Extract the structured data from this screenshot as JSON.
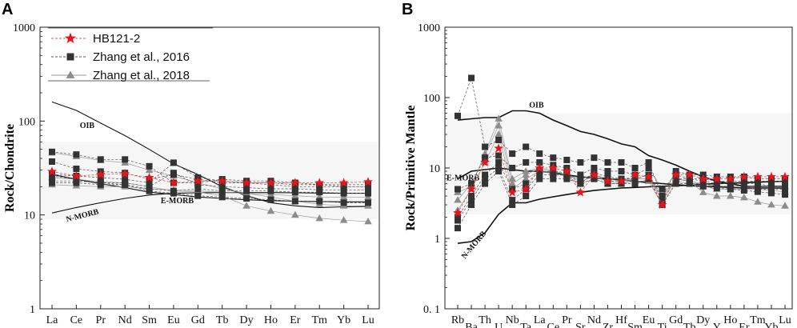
{
  "chart_data": [
    {
      "panel": "A",
      "type": "line",
      "scale": "log",
      "ylabel": "Rock/Chondrite",
      "ylim": [
        1,
        1000
      ],
      "yticks": [
        "1",
        "10",
        "100",
        "1000"
      ],
      "categories": [
        "La",
        "Ce",
        "Pr",
        "Nd",
        "Sm",
        "Eu",
        "Gd",
        "Tb",
        "Dy",
        "Ho",
        "Er",
        "Tm",
        "Yb",
        "Lu"
      ],
      "legend": [
        {
          "label": "HB121-2",
          "marker": "star",
          "color": "#e8141b"
        },
        {
          "label": "Zhang et al., 2016",
          "marker": "square",
          "color": "#333333"
        },
        {
          "label": "Zhang et al., 2018",
          "marker": "triangle",
          "color": "#8c8c8c"
        }
      ],
      "reference": [
        {
          "name": "OIB",
          "values": [
            160,
            130,
            95,
            70,
            50,
            35,
            27,
            20,
            16,
            13.5,
            12.5,
            12,
            12.2,
            12.3
          ]
        },
        {
          "name": "E-MORB",
          "values": [
            27,
            24,
            21.5,
            19.5,
            17.5,
            16.5,
            15.5,
            15,
            14.5,
            14.2,
            14,
            13.9,
            13.8,
            13.8
          ]
        },
        {
          "name": "N-MORB",
          "values": [
            10.5,
            12,
            13.5,
            15,
            16.3,
            17,
            17.2,
            17.3,
            17.3,
            17.3,
            17.2,
            17.1,
            17,
            17
          ]
        }
      ],
      "series": [
        {
          "name": "HB121-2",
          "group": "HB121-2",
          "values": [
            29,
            26,
            27,
            27.5,
            25,
            22,
            23,
            23,
            22,
            22,
            22,
            22,
            22,
            22.5
          ]
        },
        {
          "name": "Zhang 2016 #1",
          "group": "Zhang et al., 2016",
          "values": [
            47,
            44,
            39,
            39,
            33,
            22,
            22,
            24,
            23,
            23,
            22,
            21,
            20,
            20
          ]
        },
        {
          "name": "Zhang 2016 #2",
          "group": "Zhang et al., 2016",
          "values": [
            37,
            31,
            29,
            28,
            24,
            27,
            24,
            22,
            22,
            22,
            21,
            21,
            21,
            21
          ]
        },
        {
          "name": "Zhang 2016 #3",
          "group": "Zhang et al., 2016",
          "values": [
            27,
            26,
            25,
            24,
            22,
            36,
            25,
            23,
            22,
            21,
            20,
            20,
            20,
            20
          ]
        },
        {
          "name": "Zhang 2016 #4",
          "group": "Zhang et al., 2016",
          "values": [
            23,
            23,
            22,
            22,
            20,
            28,
            21,
            20,
            19.5,
            19,
            19,
            18.5,
            18.5,
            18.5
          ]
        },
        {
          "name": "Zhang 2016 #5",
          "group": "Zhang et al., 2016",
          "values": [
            22,
            22,
            21,
            21,
            19,
            18,
            19,
            18,
            18,
            18,
            17.5,
            17.5,
            17,
            17
          ]
        },
        {
          "name": "Zhang 2016 #6",
          "group": "Zhang et al., 2016",
          "values": [
            26,
            24,
            22,
            21,
            18,
            17,
            16,
            15.5,
            15,
            14.5,
            14,
            14,
            13.5,
            13.5
          ]
        },
        {
          "name": "Zhang 2018 #1",
          "group": "Zhang et al., 2018",
          "values": [
            46,
            42,
            38,
            36,
            30,
            26,
            22,
            19,
            17,
            15.5,
            14,
            13,
            12.5,
            12.5
          ]
        },
        {
          "name": "Zhang 2018 #2",
          "group": "Zhang et al., 2018",
          "values": [
            25,
            24,
            22.5,
            22,
            20,
            18,
            17.5,
            16,
            12.5,
            11,
            10,
            9.2,
            8.8,
            8.5
          ]
        },
        {
          "name": "Zhang 2018 #3",
          "group": "Zhang et al., 2018",
          "values": [
            21,
            20.5,
            20,
            20,
            19,
            18.5,
            18,
            17.5,
            17,
            16.5,
            16,
            15.5,
            15.5,
            15.5
          ]
        }
      ]
    },
    {
      "panel": "B",
      "type": "line",
      "scale": "log",
      "ylabel": "Rock/Primitive Mantle",
      "ylim": [
        0.1,
        1000
      ],
      "yticks": [
        "0. 1",
        "1",
        "10",
        "100",
        "1000"
      ],
      "categories": [
        "Rb",
        "Ba",
        "Th",
        "U",
        "Nb",
        "Ta",
        "La",
        "Ce",
        "Pr",
        "Sr",
        "Nd",
        "Zr",
        "Hf",
        "Sm",
        "Eu",
        "Ti",
        "Gd",
        "Tb",
        "Dy",
        "Y",
        "Ho",
        "Er",
        "Tm",
        "Yb",
        "Lu"
      ],
      "reference": [
        {
          "name": "OIB",
          "values": [
            48,
            50,
            52,
            52,
            65,
            65,
            60,
            48,
            40,
            33,
            30,
            26,
            22,
            20,
            15,
            13,
            11,
            9,
            7.5,
            6.5,
            6,
            5.5,
            5.5,
            5.5,
            5.5
          ]
        },
        {
          "name": "E-MORB",
          "values": [
            7,
            9,
            9.5,
            10,
            9.5,
            9,
            9,
            8.5,
            8,
            7.5,
            7.2,
            7,
            6.8,
            6.5,
            6.2,
            6,
            5.8,
            5.6,
            5.5,
            5.4,
            5.3,
            5.2,
            5.2,
            5.2,
            5.2
          ]
        },
        {
          "name": "N-MORB",
          "values": [
            0.85,
            0.9,
            1.2,
            2.2,
            3.2,
            3.2,
            3.6,
            3.9,
            4.2,
            4.5,
            4.8,
            5.0,
            5.2,
            5.3,
            5.4,
            5.5,
            5.6,
            5.7,
            5.9,
            6.0,
            6.1,
            6.2,
            6.3,
            6.4,
            6.5
          ]
        }
      ],
      "series": [
        {
          "name": "HB121-2",
          "group": "HB121-2",
          "values": [
            2.3,
            5,
            12,
            19,
            4.5,
            5,
            10,
            10,
            9,
            4.5,
            8,
            6.5,
            6.5,
            8,
            7.5,
            3,
            8,
            8,
            7,
            7,
            7,
            7.5,
            7.5,
            7.5,
            7.5
          ]
        },
        {
          "name": "Zhang 2016 #1",
          "group": "Zhang et al., 2016",
          "values": [
            55,
            190,
            20,
            25,
            16,
            20,
            16,
            14,
            13,
            12,
            14,
            12,
            12,
            10,
            12,
            4,
            9,
            8,
            8,
            7.5,
            7.5,
            7.5,
            7,
            7,
            7
          ]
        },
        {
          "name": "Zhang 2016 #2",
          "group": "Zhang et al., 2016",
          "values": [
            5,
            6,
            14,
            15,
            10,
            12,
            12,
            11,
            10,
            8,
            10,
            9,
            9,
            8,
            10,
            5,
            8,
            7,
            7,
            6.5,
            6.5,
            6.5,
            6.5,
            6.5,
            6.5
          ]
        },
        {
          "name": "Zhang 2016 #3",
          "group": "Zhang et al., 2016",
          "values": [
            1.8,
            3.5,
            7,
            10,
            3.5,
            5,
            8,
            8,
            8,
            7,
            8,
            7,
            7,
            7,
            8,
            3.5,
            7,
            7,
            6.5,
            6,
            6,
            6,
            6,
            5.5,
            5.5
          ]
        },
        {
          "name": "Zhang 2016 #4",
          "group": "Zhang et al., 2016",
          "values": [
            1.4,
            3,
            6,
            9,
            3,
            4,
            7,
            7,
            7,
            6,
            7,
            6,
            6,
            6,
            7,
            3,
            6,
            6,
            6,
            5.5,
            5.5,
            5.5,
            5,
            5,
            5
          ]
        },
        {
          "name": "Zhang 2016 #5",
          "group": "Zhang et al., 2016",
          "values": [
            2,
            4,
            8,
            12,
            5,
            6,
            9,
            9,
            8.5,
            6,
            8.5,
            7.5,
            7,
            7,
            8,
            4,
            7,
            6.5,
            5.5,
            5.2,
            5,
            4.8,
            4.6,
            4.4,
            4.2
          ]
        },
        {
          "name": "Zhang 2018 #1",
          "group": "Zhang et al., 2018",
          "values": [
            3.5,
            6,
            15,
            40,
            6,
            8,
            10,
            9,
            8,
            6.5,
            7.5,
            6.5,
            6,
            7,
            7,
            3.5,
            7,
            6.5,
            4.5,
            4,
            4,
            3.8,
            3.3,
            3,
            2.9
          ]
        },
        {
          "name": "Zhang 2018 #2",
          "group": "Zhang et al., 2018",
          "values": [
            2.5,
            5,
            12,
            30,
            5,
            7,
            9,
            8.5,
            7.5,
            6,
            7,
            6,
            6,
            6.5,
            6.5,
            3,
            6.5,
            6,
            5.5,
            5,
            5,
            5,
            5,
            4.8,
            4.6
          ]
        },
        {
          "name": "Zhang 2018 #3",
          "group": "Zhang et al., 2018",
          "values": [
            4.5,
            5.5,
            16,
            50,
            7,
            9,
            10,
            9,
            8,
            7,
            8,
            7,
            6.5,
            7,
            7,
            4,
            7,
            6.5,
            6,
            5.5,
            5.5,
            5.5,
            5.5,
            5.5,
            5.5
          ]
        }
      ]
    }
  ]
}
